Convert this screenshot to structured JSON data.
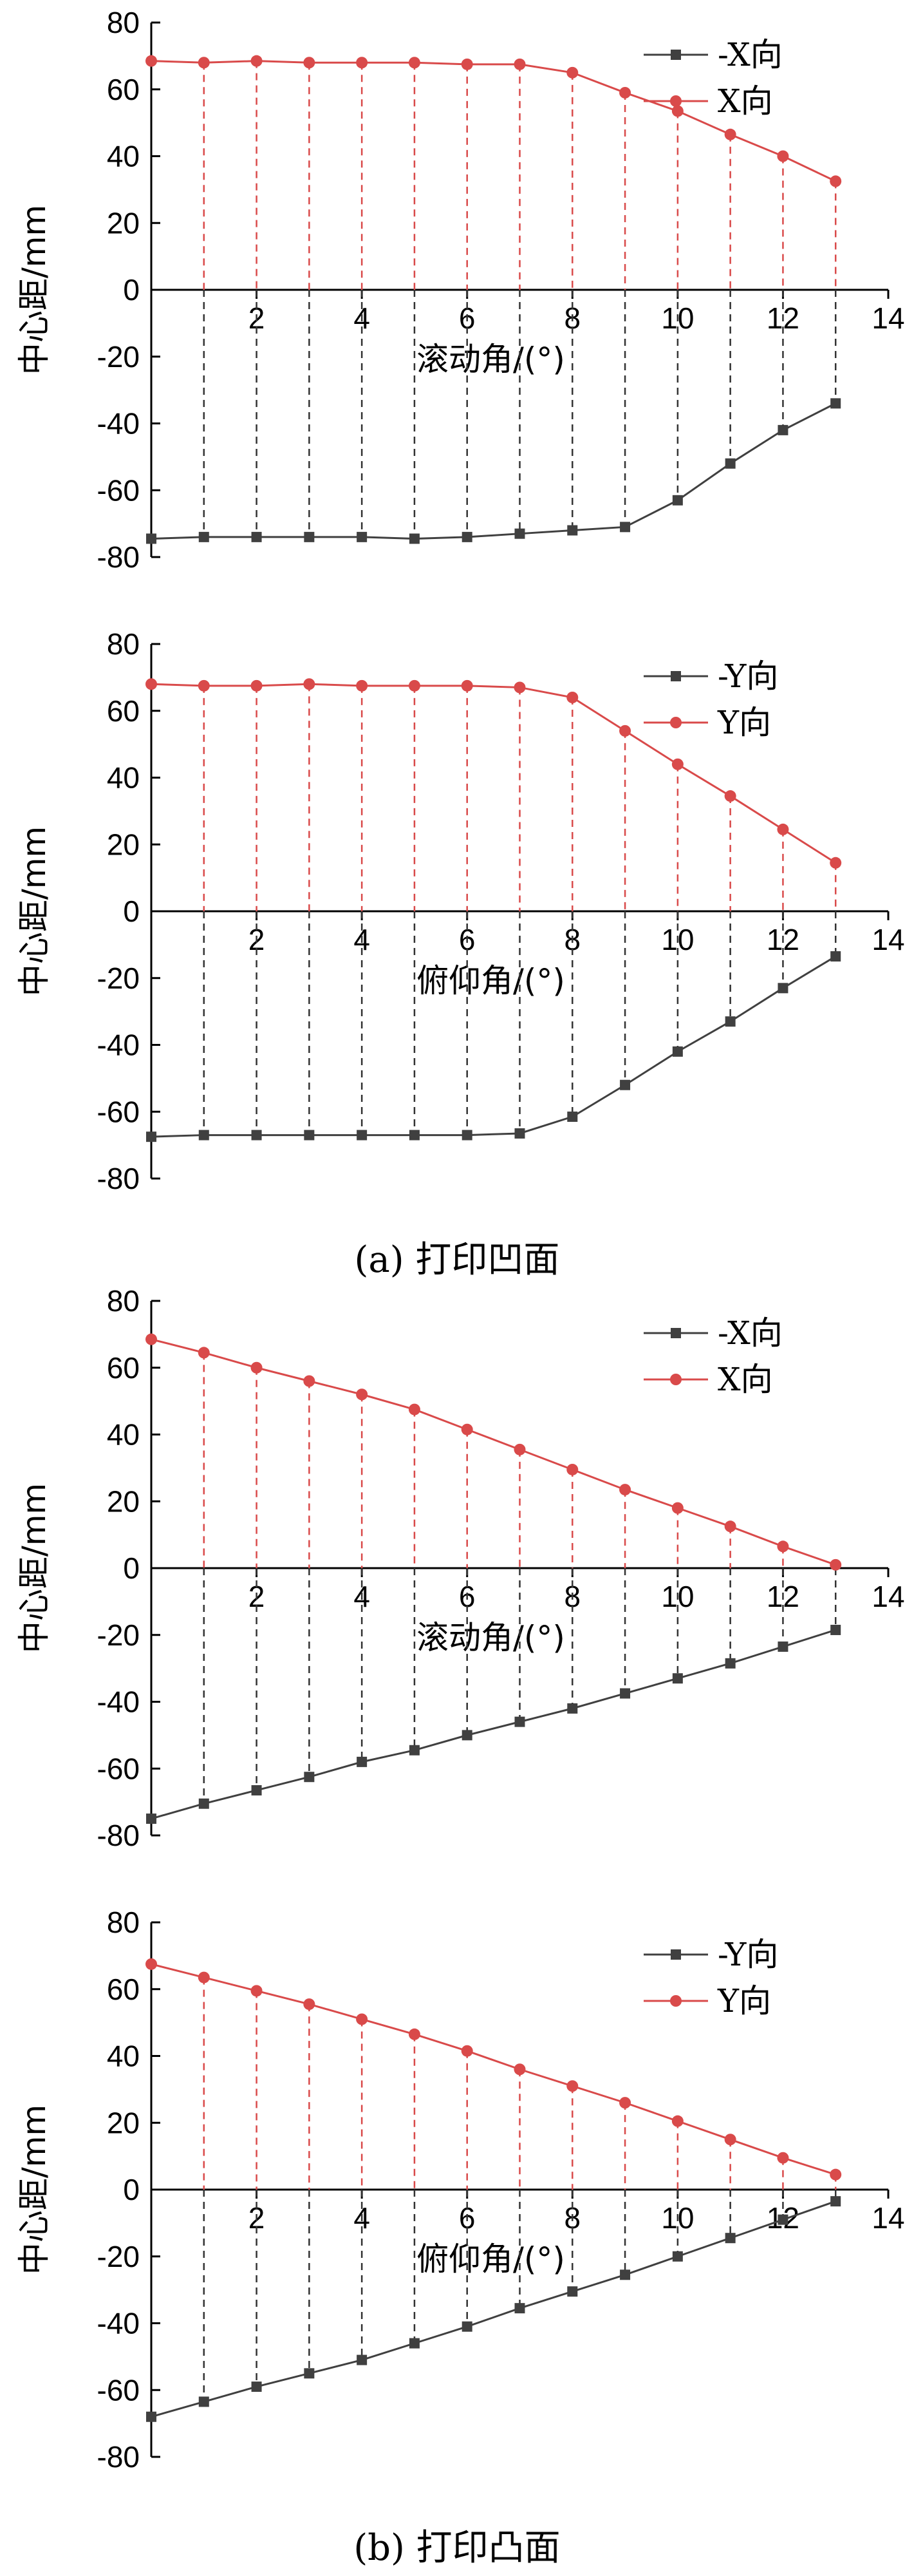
{
  "captions": {
    "a": "(a)  打印凹面",
    "b": "(b)  打印凸面"
  },
  "chart_data": [
    {
      "type": "line",
      "ylabel": "中心距/mm",
      "xlabel": "滚动角/(°)",
      "xlim": [
        0,
        14
      ],
      "ylim": [
        -80,
        80
      ],
      "xticks": [
        0,
        2,
        4,
        6,
        8,
        10,
        12,
        14
      ],
      "yticks": [
        -80,
        -60,
        -40,
        -20,
        0,
        20,
        40,
        60,
        80
      ],
      "legend_position": "top-right",
      "x": [
        0,
        1,
        2,
        3,
        4,
        5,
        6,
        7,
        8,
        9,
        10,
        11,
        12,
        13
      ],
      "series": [
        {
          "name": "-X向",
          "color": "#404040",
          "marker": "square",
          "values": [
            -74.5,
            -74,
            -74,
            -74,
            -74,
            -74.5,
            -74,
            -73,
            -72,
            -71,
            -63,
            -52,
            -42,
            -34
          ]
        },
        {
          "name": "X向",
          "color": "#d94a4a",
          "marker": "circle",
          "values": [
            68.5,
            68,
            68.5,
            68,
            68,
            68,
            67.5,
            67.5,
            65,
            59,
            53.5,
            46.5,
            40,
            32.5
          ]
        }
      ]
    },
    {
      "type": "line",
      "ylabel": "中心距/mm",
      "xlabel": "俯仰角/(°)",
      "xlim": [
        0,
        14
      ],
      "ylim": [
        -80,
        80
      ],
      "xticks": [
        0,
        2,
        4,
        6,
        8,
        10,
        12,
        14
      ],
      "yticks": [
        -80,
        -60,
        -40,
        -20,
        0,
        20,
        40,
        60,
        80
      ],
      "legend_position": "top-right",
      "x": [
        0,
        1,
        2,
        3,
        4,
        5,
        6,
        7,
        8,
        9,
        10,
        11,
        12,
        13
      ],
      "series": [
        {
          "name": "-Y向",
          "color": "#404040",
          "marker": "square",
          "values": [
            -67.5,
            -67,
            -67,
            -67,
            -67,
            -67,
            -67,
            -66.5,
            -61.5,
            -52,
            -42,
            -33,
            -23,
            -13.5
          ]
        },
        {
          "name": "Y向",
          "color": "#d94a4a",
          "marker": "circle",
          "values": [
            68,
            67.5,
            67.5,
            68,
            67.5,
            67.5,
            67.5,
            67,
            64,
            54,
            44,
            34.5,
            24.5,
            14.5
          ]
        }
      ]
    },
    {
      "type": "line",
      "ylabel": "中心距/mm",
      "xlabel": "滚动角/(°)",
      "xlim": [
        0,
        14
      ],
      "ylim": [
        -80,
        80
      ],
      "xticks": [
        0,
        2,
        4,
        6,
        8,
        10,
        12,
        14
      ],
      "yticks": [
        -80,
        -60,
        -40,
        -20,
        0,
        20,
        40,
        60,
        80
      ],
      "legend_position": "top-right",
      "x": [
        0,
        1,
        2,
        3,
        4,
        5,
        6,
        7,
        8,
        9,
        10,
        11,
        12,
        13
      ],
      "series": [
        {
          "name": "-X向",
          "color": "#404040",
          "marker": "square",
          "values": [
            -75,
            -70.5,
            -66.5,
            -62.5,
            -58,
            -54.5,
            -50,
            -46,
            -42,
            -37.5,
            -33,
            -28.5,
            -23.5,
            -18.5
          ]
        },
        {
          "name": "X向",
          "color": "#d94a4a",
          "marker": "circle",
          "values": [
            68.5,
            64.5,
            60,
            56,
            52,
            47.5,
            41.5,
            35.5,
            29.5,
            23.5,
            18,
            12.5,
            6.5,
            1
          ]
        }
      ]
    },
    {
      "type": "line",
      "ylabel": "中心距/mm",
      "xlabel": "俯仰角/(°)",
      "xlim": [
        0,
        14
      ],
      "ylim": [
        -80,
        80
      ],
      "xticks": [
        0,
        2,
        4,
        6,
        8,
        10,
        12,
        14
      ],
      "yticks": [
        -80,
        -60,
        -40,
        -20,
        0,
        20,
        40,
        60,
        80
      ],
      "legend_position": "top-right",
      "x": [
        0,
        1,
        2,
        3,
        4,
        5,
        6,
        7,
        8,
        9,
        10,
        11,
        12,
        13
      ],
      "series": [
        {
          "name": "-Y向",
          "color": "#404040",
          "marker": "square",
          "values": [
            -68,
            -63.5,
            -59,
            -55,
            -51,
            -46,
            -41,
            -35.5,
            -30.5,
            -25.5,
            -20,
            -14.5,
            -9,
            -3.5
          ]
        },
        {
          "name": "Y向",
          "color": "#d94a4a",
          "marker": "circle",
          "values": [
            67.5,
            63.5,
            59.5,
            55.5,
            51,
            46.5,
            41.5,
            36,
            31,
            26,
            20.5,
            15,
            9.5,
            4.5
          ]
        }
      ]
    }
  ]
}
